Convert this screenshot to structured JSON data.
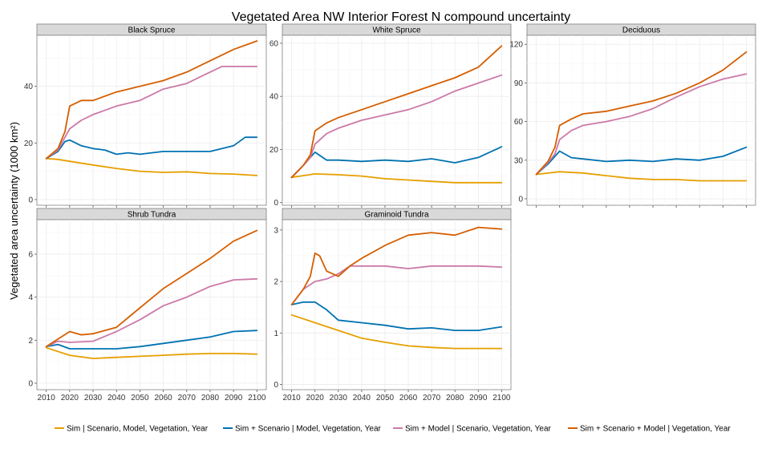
{
  "chart_data": {
    "type": "line",
    "title": "Vegetated Area NW Interior Forest N compound uncertainty",
    "ylabel": "Vegetated area uncertainty (1000 km²)",
    "xlabel": "",
    "x_ticks": [
      2010,
      2020,
      2030,
      2040,
      2050,
      2060,
      2070,
      2080,
      2090,
      2100
    ],
    "x_range": [
      2006,
      2104
    ],
    "grid": true,
    "legend_position": "bottom",
    "series_names": [
      "Sim | Scenario, Model, Vegetation, Year",
      "Sim + Scenario | Model, Vegetation, Year",
      "Sim + Model | Scenario, Vegetation, Year",
      "Sim + Scenario + Model | Vegetation, Year"
    ],
    "series_colors": [
      "#E69F00",
      "#0072B2",
      "#CC79A7",
      "#D55E00"
    ],
    "panels": [
      {
        "name": "Black Spruce",
        "ylim": [
          -2,
          58
        ],
        "yticks": [
          0,
          20,
          40
        ],
        "series": [
          {
            "x": [
              2010,
              2015,
              2020,
              2030,
              2040,
              2050,
              2060,
              2070,
              2080,
              2090,
              2100
            ],
            "y": [
              14.5,
              14.2,
              13.5,
              12.2,
              11,
              10,
              9.6,
              9.8,
              9.2,
              9,
              8.5
            ]
          },
          {
            "x": [
              2010,
              2015,
              2018,
              2020,
              2025,
              2030,
              2035,
              2040,
              2045,
              2050,
              2060,
              2070,
              2080,
              2090,
              2095,
              2100
            ],
            "y": [
              14.5,
              17,
              20.5,
              21,
              19,
              18,
              17.5,
              16,
              16.5,
              16,
              17,
              17,
              17,
              19,
              22,
              22
            ]
          },
          {
            "x": [
              2010,
              2015,
              2018,
              2020,
              2025,
              2030,
              2040,
              2050,
              2060,
              2070,
              2080,
              2085,
              2090,
              2100
            ],
            "y": [
              14.5,
              17.5,
              22,
              25,
              28,
              30,
              33,
              35,
              39,
              41,
              45,
              47,
              47,
              47
            ]
          },
          {
            "x": [
              2010,
              2015,
              2018,
              2020,
              2025,
              2030,
              2040,
              2050,
              2060,
              2070,
              2080,
              2090,
              2100
            ],
            "y": [
              14.5,
              18,
              24,
              33,
              35,
              35,
              38,
              40,
              42,
              45,
              49,
              53,
              56
            ]
          }
        ]
      },
      {
        "name": "White Spruce",
        "ylim": [
          -1,
          63
        ],
        "yticks": [
          0,
          20,
          40,
          60
        ],
        "series": [
          {
            "x": [
              2010,
              2020,
              2030,
              2040,
              2050,
              2060,
              2070,
              2080,
              2090,
              2100
            ],
            "y": [
              9.5,
              10.8,
              10.5,
              10,
              9,
              8.5,
              8,
              7.5,
              7.5,
              7.5
            ]
          },
          {
            "x": [
              2010,
              2015,
              2020,
              2025,
              2030,
              2040,
              2050,
              2060,
              2070,
              2080,
              2090,
              2100
            ],
            "y": [
              9.5,
              14,
              19,
              16,
              16,
              15.5,
              16,
              15.5,
              16.5,
              15,
              17,
              21
            ]
          },
          {
            "x": [
              2010,
              2015,
              2018,
              2020,
              2025,
              2030,
              2040,
              2050,
              2060,
              2070,
              2080,
              2090,
              2100
            ],
            "y": [
              9.5,
              14,
              17,
              22,
              26,
              28,
              31,
              33,
              35,
              38,
              42,
              45,
              48
            ]
          },
          {
            "x": [
              2010,
              2015,
              2018,
              2020,
              2025,
              2030,
              2040,
              2050,
              2060,
              2070,
              2080,
              2090,
              2100
            ],
            "y": [
              9.5,
              14,
              18,
              27,
              30,
              32,
              35,
              38,
              41,
              44,
              47,
              51,
              59
            ]
          }
        ]
      },
      {
        "name": "Deciduous",
        "ylim": [
          -5,
          127
        ],
        "yticks": [
          0,
          30,
          60,
          90,
          120
        ],
        "series": [
          {
            "x": [
              2010,
              2020,
              2030,
              2040,
              2050,
              2060,
              2070,
              2080,
              2090,
              2100
            ],
            "y": [
              19,
              21,
              20,
              18,
              16,
              15,
              15,
              14,
              14,
              14
            ]
          },
          {
            "x": [
              2010,
              2015,
              2020,
              2025,
              2030,
              2040,
              2050,
              2060,
              2070,
              2080,
              2090,
              2100
            ],
            "y": [
              19,
              27,
              37,
              32,
              31,
              29,
              30,
              29,
              31,
              30,
              33,
              40
            ]
          },
          {
            "x": [
              2010,
              2015,
              2018,
              2020,
              2025,
              2030,
              2040,
              2050,
              2060,
              2070,
              2080,
              2090,
              2100
            ],
            "y": [
              19,
              28,
              35,
              46,
              53,
              57,
              60,
              64,
              70,
              79,
              87,
              93,
              97
            ]
          },
          {
            "x": [
              2010,
              2015,
              2018,
              2020,
              2025,
              2030,
              2040,
              2050,
              2060,
              2070,
              2080,
              2090,
              2100
            ],
            "y": [
              19,
              29,
              40,
              57,
              62,
              66,
              68,
              72,
              76,
              82,
              90,
              100,
              114
            ]
          }
        ]
      },
      {
        "name": "Shrub Tundra",
        "ylim": [
          -0.3,
          7.6
        ],
        "yticks": [
          0,
          2,
          4,
          6
        ],
        "series": [
          {
            "x": [
              2010,
              2020,
              2030,
              2040,
              2050,
              2060,
              2070,
              2080,
              2090,
              2100
            ],
            "y": [
              1.65,
              1.3,
              1.15,
              1.2,
              1.25,
              1.3,
              1.35,
              1.38,
              1.38,
              1.35
            ]
          },
          {
            "x": [
              2010,
              2015,
              2020,
              2030,
              2040,
              2050,
              2060,
              2070,
              2080,
              2090,
              2100
            ],
            "y": [
              1.7,
              1.8,
              1.6,
              1.6,
              1.6,
              1.7,
              1.85,
              2.0,
              2.15,
              2.4,
              2.45
            ]
          },
          {
            "x": [
              2010,
              2015,
              2020,
              2030,
              2040,
              2050,
              2060,
              2070,
              2080,
              2090,
              2100
            ],
            "y": [
              1.7,
              1.95,
              1.9,
              1.95,
              2.4,
              2.95,
              3.6,
              4.0,
              4.5,
              4.8,
              4.85
            ]
          },
          {
            "x": [
              2010,
              2015,
              2020,
              2025,
              2030,
              2040,
              2050,
              2060,
              2070,
              2080,
              2090,
              2100
            ],
            "y": [
              1.7,
              2.05,
              2.4,
              2.25,
              2.3,
              2.6,
              3.5,
              4.4,
              5.1,
              5.8,
              6.6,
              7.1
            ]
          }
        ]
      },
      {
        "name": "Graminoid Tundra",
        "ylim": [
          -0.1,
          3.2
        ],
        "yticks": [
          0,
          1,
          2,
          3
        ],
        "series": [
          {
            "x": [
              2010,
              2020,
              2030,
              2040,
              2050,
              2060,
              2070,
              2080,
              2090,
              2100
            ],
            "y": [
              1.35,
              1.2,
              1.05,
              0.9,
              0.82,
              0.75,
              0.72,
              0.7,
              0.7,
              0.7
            ]
          },
          {
            "x": [
              2010,
              2015,
              2020,
              2025,
              2030,
              2040,
              2050,
              2060,
              2070,
              2080,
              2090,
              2100
            ],
            "y": [
              1.55,
              1.6,
              1.6,
              1.45,
              1.25,
              1.2,
              1.15,
              1.08,
              1.1,
              1.05,
              1.05,
              1.12
            ]
          },
          {
            "x": [
              2010,
              2015,
              2020,
              2025,
              2030,
              2035,
              2040,
              2050,
              2060,
              2070,
              2080,
              2090,
              2100
            ],
            "y": [
              1.55,
              1.85,
              2.0,
              2.05,
              2.15,
              2.3,
              2.3,
              2.3,
              2.25,
              2.3,
              2.3,
              2.3,
              2.28
            ]
          },
          {
            "x": [
              2010,
              2015,
              2018,
              2020,
              2022,
              2025,
              2030,
              2035,
              2040,
              2050,
              2060,
              2070,
              2080,
              2090,
              2100
            ],
            "y": [
              1.55,
              1.85,
              2.1,
              2.55,
              2.5,
              2.2,
              2.1,
              2.3,
              2.45,
              2.7,
              2.9,
              2.95,
              2.9,
              3.05,
              3.02
            ]
          }
        ]
      }
    ]
  }
}
